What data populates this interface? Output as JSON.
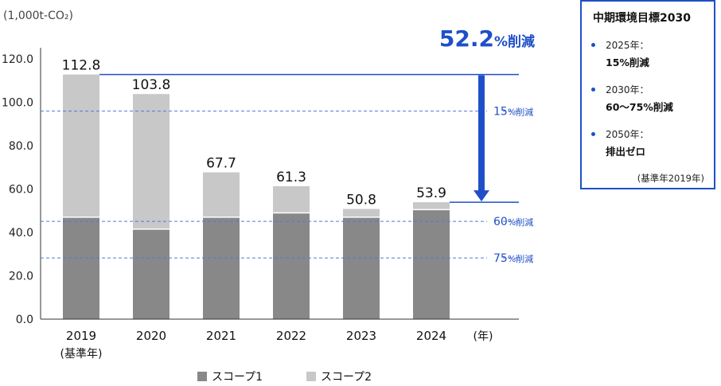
{
  "chart_data": {
    "type": "bar",
    "stacked": true,
    "unit_label": "(1,000t-CO₂)",
    "categories": [
      "2019",
      "2020",
      "2021",
      "2022",
      "2023",
      "2024"
    ],
    "category_sublabels": [
      "(基準年)",
      "",
      "",
      "",
      "",
      ""
    ],
    "x_unit": "(年)",
    "ylim": [
      0,
      120
    ],
    "yticks": [
      "0.0",
      "20.0",
      "40.0",
      "60.0",
      "80.0",
      "100.0",
      "120.0"
    ],
    "series": [
      {
        "name": "スコープ1",
        "color": "#888888",
        "values": [
          47.0,
          41.5,
          47.0,
          49.0,
          47.0,
          50.5
        ]
      },
      {
        "name": "スコープ2",
        "color": "#c8c8c8",
        "values": [
          65.8,
          62.3,
          20.7,
          12.3,
          3.8,
          3.4
        ]
      }
    ],
    "totals": [
      112.8,
      103.8,
      67.7,
      61.3,
      50.8,
      53.9
    ],
    "total_labels": [
      "112.8",
      "103.8",
      "67.7",
      "61.3",
      "50.8",
      "53.9"
    ],
    "reference_lines": [
      {
        "value": 95.9,
        "label_num": "15",
        "label_suffix": "%削減"
      },
      {
        "value": 45.1,
        "label_num": "60",
        "label_suffix": "%削減"
      },
      {
        "value": 28.2,
        "label_num": "75",
        "label_suffix": "%削減"
      }
    ],
    "reduction": {
      "from": 112.8,
      "to": 53.9,
      "num": "52.2",
      "suffix": "%削減"
    },
    "accent_color": "#1f4fc8",
    "grid": false,
    "legend_position": "bottom"
  },
  "target_box": {
    "title": "中期環境目標2030",
    "items": [
      {
        "year": "2025年：",
        "value": "15%削減"
      },
      {
        "year": "2030年：",
        "value": "60〜75%削減"
      },
      {
        "year": "2050年：",
        "value": "排出ゼロ"
      }
    ],
    "note": "(基準年2019年)"
  }
}
